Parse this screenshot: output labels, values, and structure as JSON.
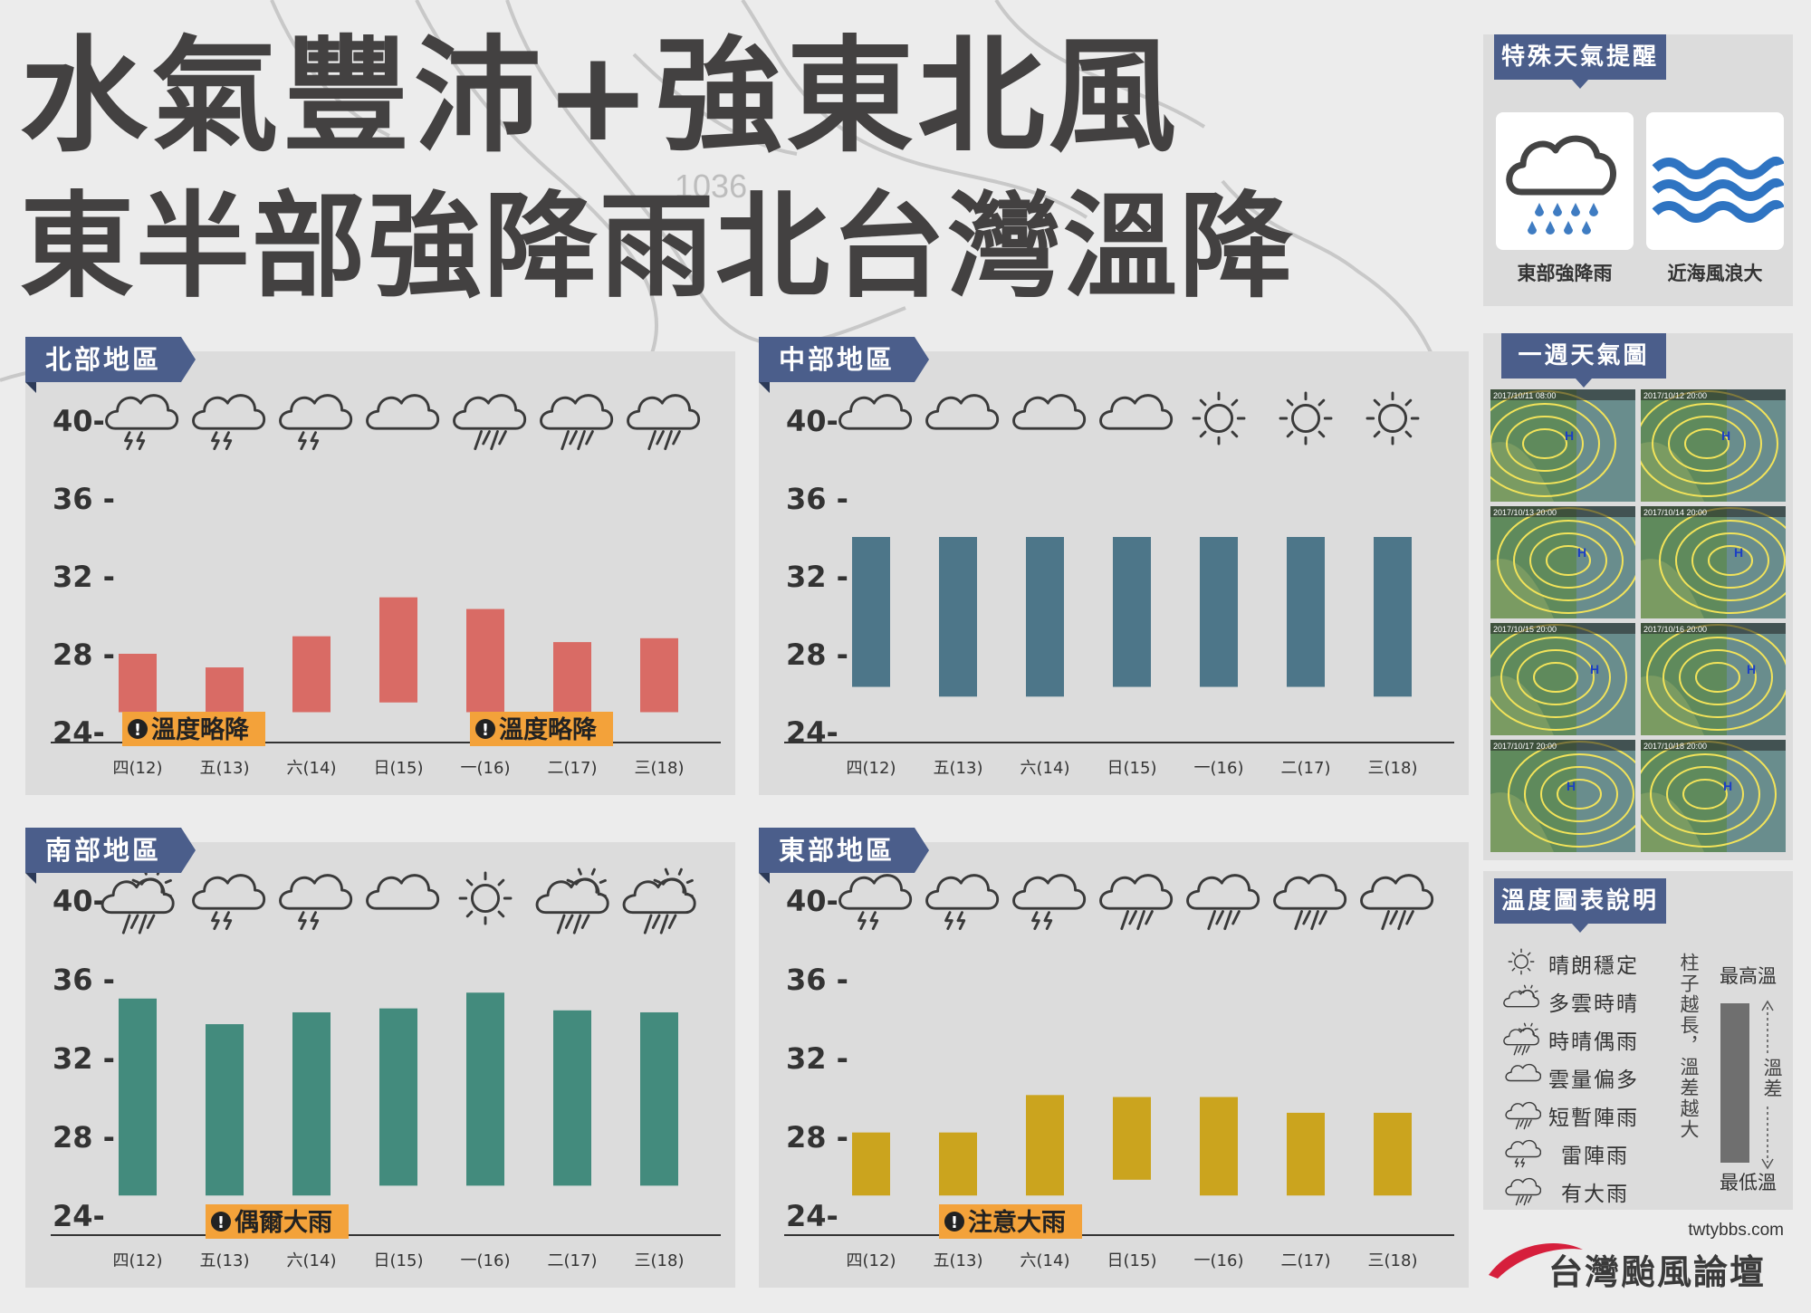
{
  "title": {
    "line1": "水氣豐沛+強東北風",
    "line2": "東半部強降雨北台灣溫降"
  },
  "background_map_label": "1036",
  "alerts": {
    "heading": "特殊天氣提醒",
    "items": [
      {
        "icon": "heavy-rain-cloud-icon",
        "label": "東部強降雨"
      },
      {
        "icon": "sea-waves-icon",
        "label": "近海風浪大"
      }
    ]
  },
  "weekly_map": {
    "heading": "一週天氣圖",
    "frames": [
      "2017/10/11 08:00",
      "2017/10/12 20:00",
      "2017/10/13 20:00",
      "2017/10/14 20:00",
      "2017/10/15 20:00",
      "2017/10/16 20:00",
      "2017/10/17 20:00",
      "2017/10/18 20:00"
    ]
  },
  "legend": {
    "heading": "溫度圖表說明",
    "items": [
      {
        "icon": "sunny",
        "label": "晴朗穩定"
      },
      {
        "icon": "partly-cloudy",
        "label": "多雲時晴"
      },
      {
        "icon": "sun-shower",
        "label": "時晴偶雨"
      },
      {
        "icon": "cloudy",
        "label": "雲量偏多"
      },
      {
        "icon": "showers",
        "label": "短暫陣雨"
      },
      {
        "icon": "thunderstorm",
        "label": "雷陣雨"
      },
      {
        "icon": "heavy-rain",
        "label": "有大雨"
      }
    ],
    "bar_top_label": "最高溫",
    "bar_bottom_label": "最低溫",
    "bar_side_label": "溫差",
    "bar_note": "柱子越長，溫差越大"
  },
  "logo": {
    "url": "twtybbs.com",
    "name": "台灣颱風論壇"
  },
  "colors": {
    "north": "#d96b65",
    "central": "#4d7689",
    "south": "#438b7d",
    "east": "#cba41e",
    "tag": "#4b5e8b",
    "warning": "#f3a23a"
  },
  "chart_data": [
    {
      "type": "bar",
      "region": "北部地區",
      "categories": [
        "四(12)",
        "五(13)",
        "六(14)",
        "日(15)",
        "一(16)",
        "二(17)",
        "三(18)"
      ],
      "y_ticks": [
        "40-",
        "36 -",
        "32 -",
        "28 -",
        "24-"
      ],
      "ylim": [
        24,
        40
      ],
      "series": [
        {
          "low": [
            25,
            25,
            25,
            25.5,
            25,
            25,
            25
          ],
          "high": [
            28,
            27.3,
            28.9,
            30.9,
            30.3,
            28.6,
            28.8
          ]
        }
      ],
      "weather": [
        "thunderstorm",
        "thunderstorm",
        "thunderstorm",
        "cloudy",
        "showers",
        "showers",
        "showers"
      ],
      "notes": [
        {
          "text": "溫度略降",
          "at": 1
        },
        {
          "text": "溫度略降",
          "at": 5
        }
      ]
    },
    {
      "type": "bar",
      "region": "中部地區",
      "categories": [
        "四(12)",
        "五(13)",
        "六(14)",
        "日(15)",
        "一(16)",
        "二(17)",
        "三(18)"
      ],
      "y_ticks": [
        "40-",
        "36 -",
        "32 -",
        "28 -",
        "24-"
      ],
      "ylim": [
        24,
        40
      ],
      "series": [
        {
          "low": [
            26.3,
            25.8,
            25.8,
            26.3,
            26.3,
            26.3,
            25.8
          ],
          "high": [
            34,
            34,
            34,
            34,
            34,
            34,
            34
          ]
        }
      ],
      "weather": [
        "cloudy",
        "cloudy",
        "cloudy",
        "cloudy",
        "sunny",
        "sunny",
        "sunny"
      ],
      "notes": []
    },
    {
      "type": "bar",
      "region": "南部地區",
      "categories": [
        "四(12)",
        "五(13)",
        "六(14)",
        "日(15)",
        "一(16)",
        "二(17)",
        "三(18)"
      ],
      "y_ticks": [
        "40-",
        "36 -",
        "32 -",
        "28 -",
        "24-"
      ],
      "ylim": [
        24,
        40
      ],
      "series": [
        {
          "low": [
            25,
            25,
            25,
            25.5,
            25.5,
            25.5,
            25.5
          ],
          "high": [
            35,
            33.7,
            34.3,
            34.5,
            35.3,
            34.4,
            34.3
          ]
        }
      ],
      "weather": [
        "sun-shower",
        "thunderstorm",
        "thunderstorm",
        "cloudy",
        "sunny",
        "sun-shower",
        "sun-shower"
      ],
      "notes": [
        {
          "text": "偶爾大雨",
          "at": 2
        }
      ]
    },
    {
      "type": "bar",
      "region": "東部地區",
      "categories": [
        "四(12)",
        "五(13)",
        "六(14)",
        "日(15)",
        "一(16)",
        "二(17)",
        "三(18)"
      ],
      "y_ticks": [
        "40-",
        "36 -",
        "32 -",
        "28 -",
        "24-"
      ],
      "ylim": [
        24,
        40
      ],
      "series": [
        {
          "low": [
            25,
            25,
            25,
            25.8,
            25,
            25,
            25
          ],
          "high": [
            28.2,
            28.2,
            30.1,
            30,
            30,
            29.2,
            29.2
          ]
        }
      ],
      "weather": [
        "thunderstorm",
        "thunderstorm",
        "thunderstorm",
        "showers",
        "showers",
        "showers",
        "showers"
      ],
      "notes": [
        {
          "text": "注意大雨",
          "at": 2
        }
      ]
    }
  ]
}
